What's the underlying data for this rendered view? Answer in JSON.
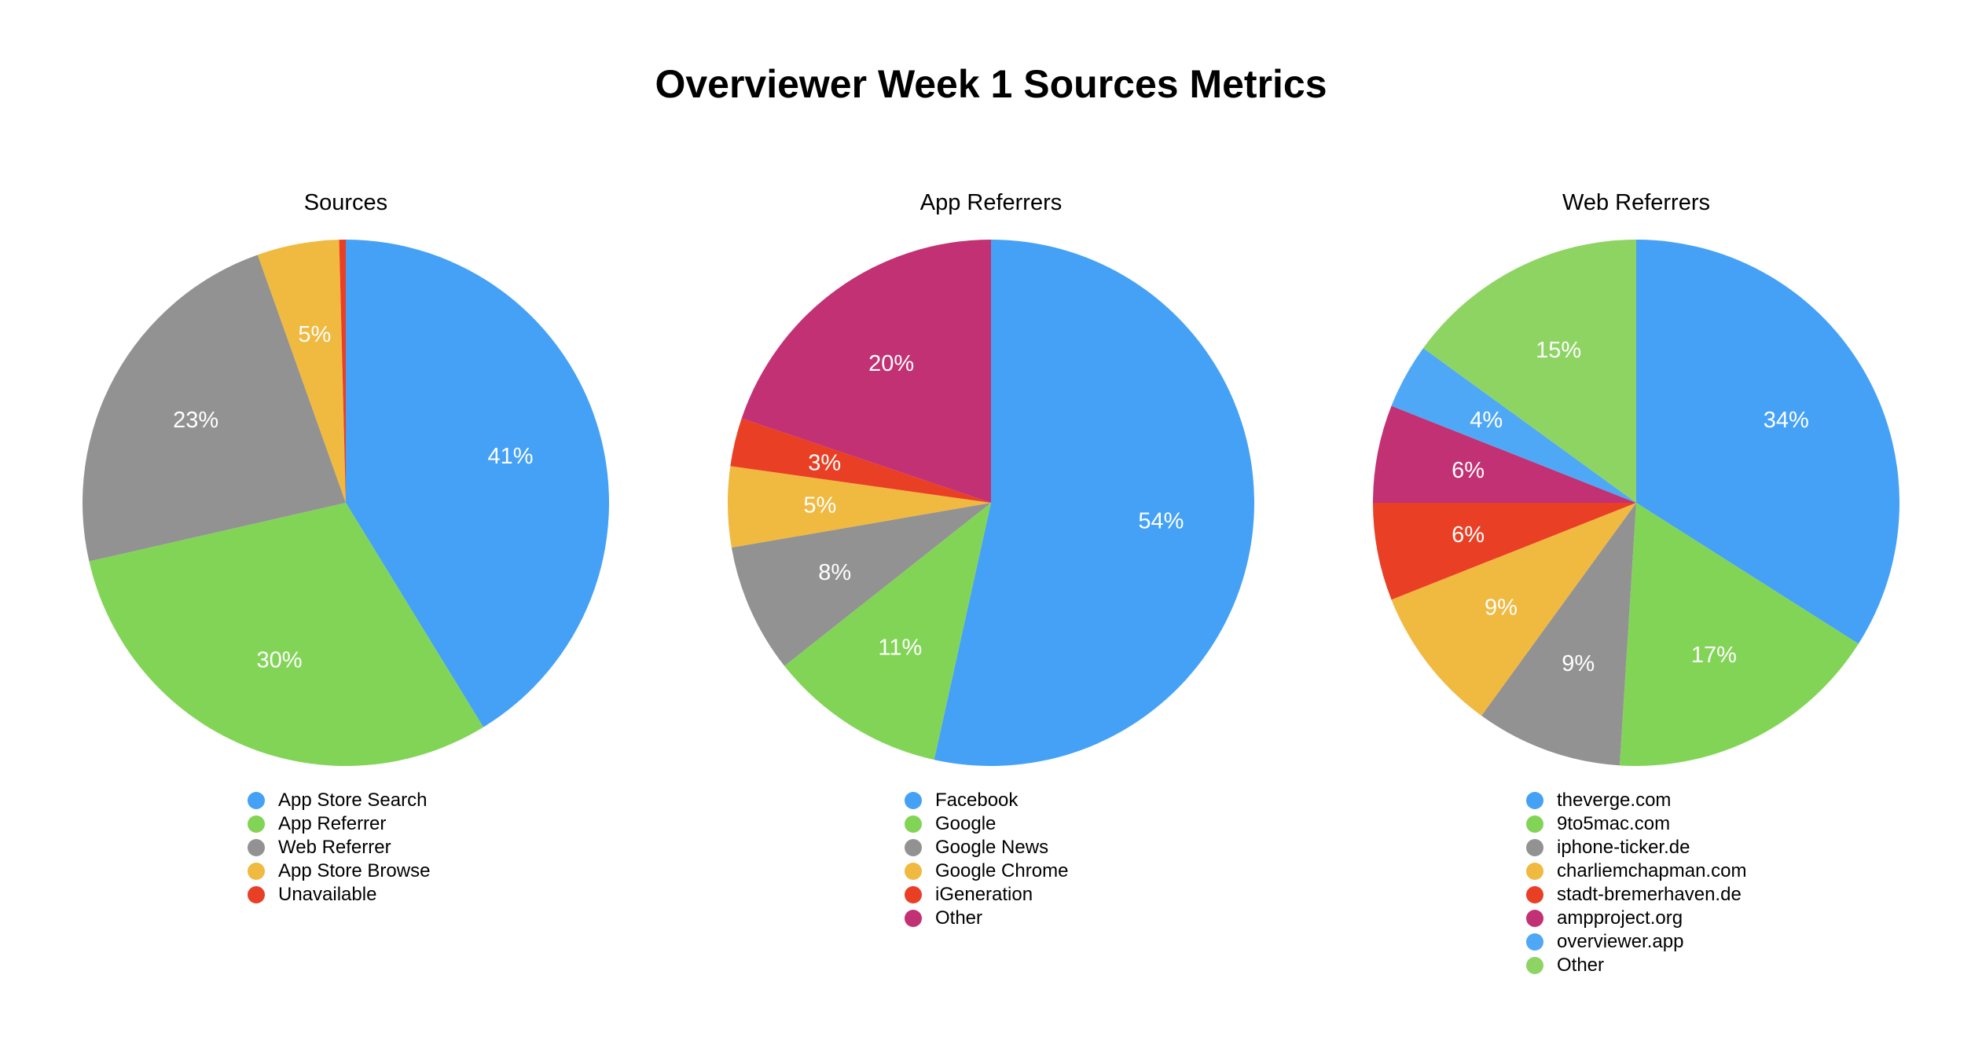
{
  "title": "Overviewer Week 1 Sources Metrics",
  "colors": {
    "blue": "#45a1f5",
    "green": "#82d457",
    "gray": "#929292",
    "yellow": "#f0b940",
    "red": "#e93f25",
    "magenta": "#c23173",
    "light_blue": "#4fa8f5",
    "light_green": "#8ed463"
  },
  "chart_data": [
    {
      "type": "pie",
      "title": "Sources",
      "legend_placement": "bottom",
      "slices": [
        {
          "name": "App Store Search",
          "value": 41,
          "label": "41%",
          "color": "#45a1f5"
        },
        {
          "name": "App Referrer",
          "value": 30,
          "label": "30%",
          "color": "#82d457"
        },
        {
          "name": "Web Referrer",
          "value": 23,
          "label": "23%",
          "color": "#929292"
        },
        {
          "name": "App Store Browse",
          "value": 5,
          "label": "5%",
          "color": "#f0b940"
        },
        {
          "name": "Unavailable",
          "value": 0.4,
          "label": "",
          "color": "#e93f25"
        }
      ]
    },
    {
      "type": "pie",
      "title": "App Referrers",
      "legend_placement": "bottom",
      "slices": [
        {
          "name": "Facebook",
          "value": 54,
          "label": "54%",
          "color": "#45a1f5"
        },
        {
          "name": "Google",
          "value": 11,
          "label": "11%",
          "color": "#82d457"
        },
        {
          "name": "Google News",
          "value": 8,
          "label": "8%",
          "color": "#929292"
        },
        {
          "name": "Google Chrome",
          "value": 5,
          "label": "5%",
          "color": "#f0b940"
        },
        {
          "name": "iGeneration",
          "value": 3,
          "label": "3%",
          "color": "#e93f25"
        },
        {
          "name": "Other",
          "value": 20,
          "label": "20%",
          "color": "#c23173"
        }
      ]
    },
    {
      "type": "pie",
      "title": "Web Referrers",
      "legend_placement": "bottom",
      "slices": [
        {
          "name": "theverge.com",
          "value": 34,
          "label": "34%",
          "color": "#45a1f5"
        },
        {
          "name": "9to5mac.com",
          "value": 17,
          "label": "17%",
          "color": "#82d457"
        },
        {
          "name": "iphone-ticker.de",
          "value": 9,
          "label": "9%",
          "color": "#929292"
        },
        {
          "name": "charliemchapman.com",
          "value": 9,
          "label": "9%",
          "color": "#f0b940"
        },
        {
          "name": "stadt-bremerhaven.de",
          "value": 6,
          "label": "6%",
          "color": "#e93f25"
        },
        {
          "name": "ampproject.org",
          "value": 6,
          "label": "6%",
          "color": "#c23173"
        },
        {
          "name": "overviewer.app",
          "value": 4,
          "label": "4%",
          "color": "#4fa8f5"
        },
        {
          "name": "Other",
          "value": 15,
          "label": "15%",
          "color": "#8ed463"
        }
      ]
    }
  ]
}
